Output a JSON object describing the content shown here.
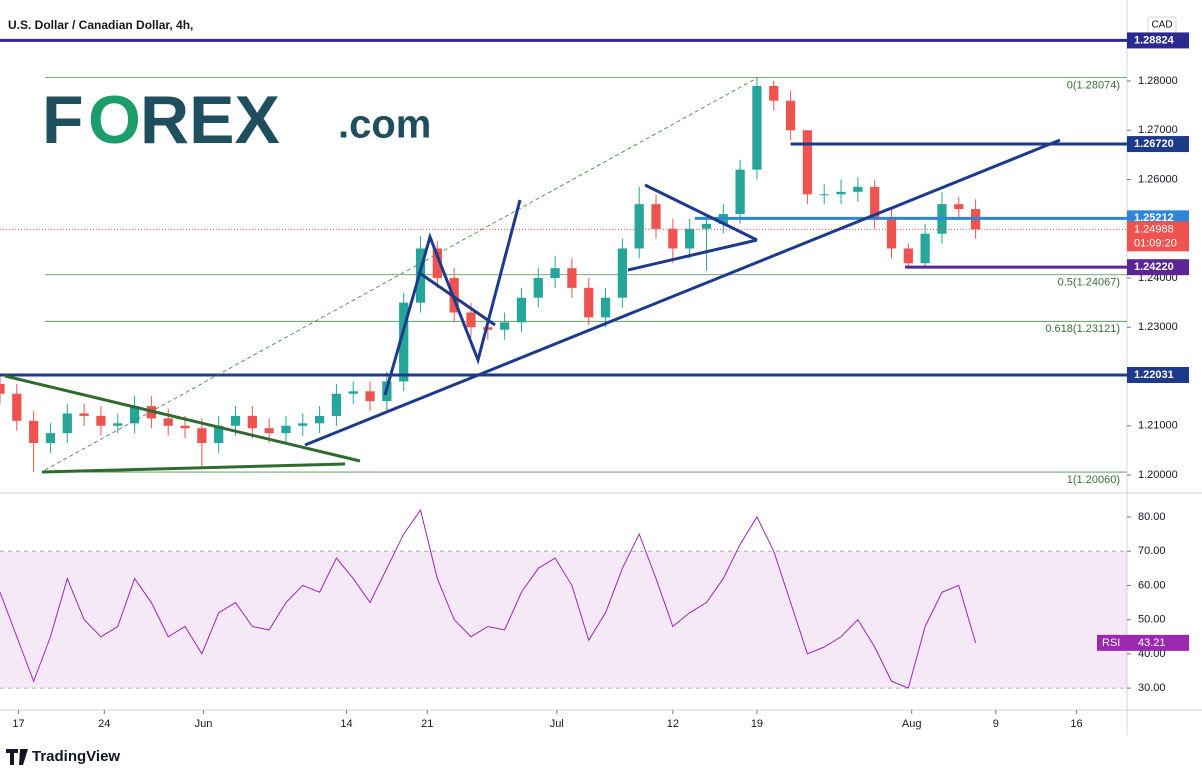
{
  "header": {
    "title": "U.S. Dollar / Canadian Dollar, 4h,",
    "currency": "CAD"
  },
  "logo": {
    "first": "F",
    "o": "O",
    "rest": "REX",
    "suffix": ".com"
  },
  "footer": {
    "brand": "TradingView"
  },
  "chart_data": [
    {
      "type": "candlestick",
      "up_color": "#26a69a",
      "down_color": "#ef5350",
      "xlim": [
        0,
        67
      ],
      "xticks": [
        {
          "value": 1.1,
          "label": "17"
        },
        {
          "value": 6.2,
          "label": "24"
        },
        {
          "value": 12.1,
          "label": "Jun"
        },
        {
          "value": 20.6,
          "label": "14"
        },
        {
          "value": 25.4,
          "label": "21"
        },
        {
          "value": 33.1,
          "label": "Jul"
        },
        {
          "value": 40.0,
          "label": "12"
        },
        {
          "value": 45.0,
          "label": "19"
        },
        {
          "value": 54.2,
          "label": "Aug"
        },
        {
          "value": 59.2,
          "label": "9"
        },
        {
          "value": 64.0,
          "label": "16"
        }
      ],
      "ylim": [
        1.19635,
        1.29645
      ],
      "yticks": [
        {
          "value": 1.2,
          "label": "1.20000"
        },
        {
          "value": 1.21,
          "label": "1.21000"
        },
        {
          "value": 1.22,
          "label": "1.22000"
        },
        {
          "value": 1.23,
          "label": "1.23000"
        },
        {
          "value": 1.24,
          "label": "1.24000"
        },
        {
          "value": 1.25,
          "label": "1.25000"
        },
        {
          "value": 1.26,
          "label": "1.26000"
        },
        {
          "value": 1.27,
          "label": "1.27000"
        },
        {
          "value": 1.28,
          "label": "1.28000"
        }
      ],
      "x": [
        0,
        1,
        2,
        3,
        4,
        5,
        6,
        7,
        8,
        9,
        10,
        11,
        12,
        13,
        14,
        15,
        16,
        17,
        18,
        19,
        20,
        21,
        22,
        23,
        24,
        25,
        26,
        27,
        28,
        29,
        30,
        31,
        32,
        33,
        34,
        35,
        36,
        37,
        38,
        39,
        40,
        41,
        42,
        43,
        44,
        45,
        46,
        47,
        48,
        49,
        50,
        51,
        52,
        53,
        54,
        55,
        56,
        57,
        58
      ],
      "open": [
        1.2185,
        1.2165,
        1.211,
        1.2065,
        1.2085,
        1.2125,
        1.212,
        1.21,
        1.2105,
        1.214,
        1.2115,
        1.21,
        1.2095,
        1.2065,
        1.21,
        1.212,
        1.2095,
        1.2085,
        1.21,
        1.2105,
        1.212,
        1.2165,
        1.217,
        1.215,
        1.219,
        1.235,
        1.246,
        1.24,
        1.233,
        1.23,
        1.2295,
        1.231,
        1.236,
        1.24,
        1.242,
        1.238,
        1.232,
        1.236,
        1.246,
        1.255,
        1.25,
        1.246,
        1.25,
        1.251,
        1.253,
        1.262,
        1.279,
        1.276,
        1.27,
        1.257,
        1.257,
        1.2575,
        1.2585,
        1.252,
        1.246,
        1.243,
        1.249,
        1.255,
        1.254
      ],
      "high": [
        1.2205,
        1.2185,
        1.213,
        1.2105,
        1.2145,
        1.2145,
        1.214,
        1.2125,
        1.216,
        1.216,
        1.2135,
        1.212,
        1.2115,
        1.212,
        1.214,
        1.214,
        1.2115,
        1.212,
        1.2125,
        1.214,
        1.2185,
        1.219,
        1.219,
        1.221,
        1.237,
        1.2485,
        1.2475,
        1.242,
        1.235,
        1.232,
        1.233,
        1.238,
        1.242,
        1.2445,
        1.244,
        1.24,
        1.238,
        1.248,
        1.2585,
        1.257,
        1.252,
        1.252,
        1.253,
        1.255,
        1.264,
        1.2807,
        1.28,
        1.278,
        1.27,
        1.259,
        1.26,
        1.2605,
        1.26,
        1.254,
        1.247,
        1.251,
        1.2575,
        1.2565,
        1.256
      ],
      "low": [
        1.2145,
        1.209,
        1.2006,
        1.2045,
        1.2065,
        1.21,
        1.208,
        1.2085,
        1.2085,
        1.2095,
        1.208,
        1.2075,
        1.2015,
        1.2045,
        1.208,
        1.2075,
        1.2065,
        1.2065,
        1.208,
        1.2085,
        1.21,
        1.2145,
        1.213,
        1.213,
        1.217,
        1.233,
        1.238,
        1.231,
        1.228,
        1.2275,
        1.2275,
        1.229,
        1.234,
        1.238,
        1.236,
        1.2305,
        1.23,
        1.234,
        1.244,
        1.248,
        1.243,
        1.244,
        1.2415,
        1.249,
        1.251,
        1.26,
        1.274,
        1.268,
        1.255,
        1.255,
        1.255,
        1.2555,
        1.25,
        1.244,
        1.2422,
        1.2425,
        1.247,
        1.252,
        1.248
      ],
      "close": [
        1.2165,
        1.211,
        1.2065,
        1.2085,
        1.2125,
        1.212,
        1.21,
        1.2105,
        1.214,
        1.2115,
        1.21,
        1.2095,
        1.2065,
        1.21,
        1.212,
        1.2095,
        1.2085,
        1.21,
        1.2105,
        1.212,
        1.2165,
        1.217,
        1.215,
        1.219,
        1.235,
        1.246,
        1.24,
        1.233,
        1.23,
        1.2295,
        1.231,
        1.236,
        1.24,
        1.242,
        1.238,
        1.232,
        1.236,
        1.246,
        1.255,
        1.25,
        1.246,
        1.25,
        1.251,
        1.253,
        1.262,
        1.279,
        1.276,
        1.27,
        1.257,
        1.257,
        1.2575,
        1.2585,
        1.252,
        1.246,
        1.243,
        1.249,
        1.255,
        1.254,
        1.24988
      ],
      "levels": [
        {
          "value": 1.28824,
          "label": "1.28824",
          "color": "#2b2a8f",
          "start": 0
        },
        {
          "value": 1.2672,
          "label": "1.26720",
          "color": "#1e3a8a",
          "start": 47
        },
        {
          "value": 1.25212,
          "label": "1.25212",
          "color": "#2f86d6",
          "start": 41.3
        },
        {
          "value": 1.2422,
          "label": "1.24220",
          "color": "#5b2596",
          "start": 53.8
        },
        {
          "value": 1.22031,
          "label": "1.22031",
          "color": "#1e3a8a",
          "start": 0
        }
      ],
      "fib": [
        {
          "value": 1.28074,
          "label": "0(1.28074)"
        },
        {
          "value": 1.24067,
          "label": "0.5(1.24067)"
        },
        {
          "value": 1.23121,
          "label": "0.618(1.23121)"
        },
        {
          "value": 1.2006,
          "label": "1(1.20060)"
        }
      ],
      "last": {
        "value": 1.24988,
        "countdown": "01:09:20"
      }
    },
    {
      "type": "line",
      "ylim": [
        23.6,
        87.0
      ],
      "yticks": [
        {
          "value": 30,
          "label": "30.00"
        },
        {
          "value": 40,
          "label": "40.00"
        },
        {
          "value": 50,
          "label": "50.00"
        },
        {
          "value": 60,
          "label": "60.00"
        },
        {
          "value": 70,
          "label": "70.00"
        },
        {
          "value": 80,
          "label": "80.00"
        }
      ],
      "band": [
        30,
        70
      ],
      "x": [
        0,
        1,
        2,
        3,
        4,
        5,
        6,
        7,
        8,
        9,
        10,
        11,
        12,
        13,
        14,
        15,
        16,
        17,
        18,
        19,
        20,
        21,
        22,
        23,
        24,
        25,
        26,
        27,
        28,
        29,
        30,
        31,
        32,
        33,
        34,
        35,
        36,
        37,
        38,
        39,
        40,
        41,
        42,
        43,
        44,
        45,
        46,
        47,
        48,
        49,
        50,
        51,
        52,
        53,
        54,
        55,
        56,
        57,
        58
      ],
      "series": [
        {
          "name": "RSI",
          "color": "#9c27b0",
          "values": [
            58,
            45,
            32,
            45,
            62,
            50,
            45,
            48,
            62,
            55,
            45,
            48,
            40,
            52,
            55,
            48,
            47,
            55,
            60,
            58,
            68,
            62,
            55,
            65,
            75,
            82,
            62,
            50,
            45,
            48,
            47,
            58,
            65,
            68,
            60,
            44,
            52,
            65,
            75,
            62,
            48,
            52,
            55,
            62,
            72,
            80,
            70,
            55,
            40,
            42,
            45,
            50,
            42,
            32,
            30,
            48,
            58,
            60,
            43.21
          ]
        }
      ]
    }
  ]
}
